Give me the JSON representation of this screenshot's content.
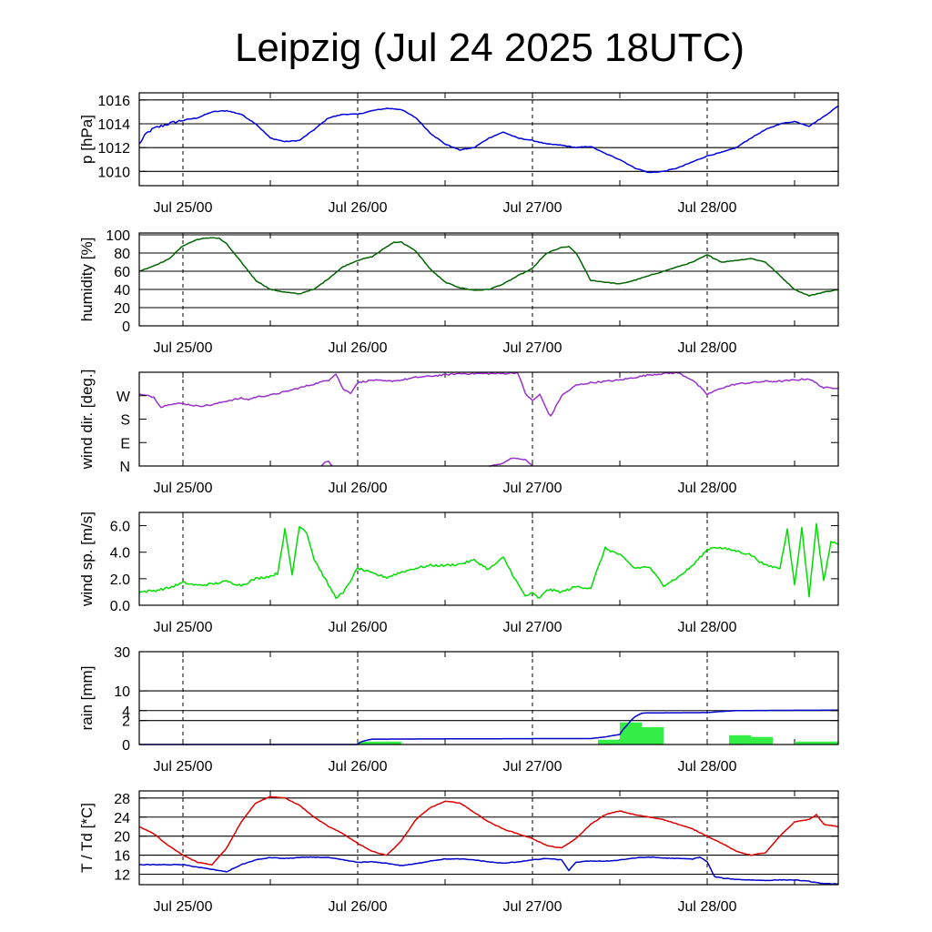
{
  "title": "Leipzig (Jul 24 2025 18UTC)",
  "x_axis": {
    "start_hour": 18,
    "end_hour": 114,
    "minor_step_hours": 12,
    "labels": [
      {
        "text": "Jul 25/00",
        "hour": 24
      },
      {
        "text": "Jul 26/00",
        "hour": 48
      },
      {
        "text": "Jul 27/00",
        "hour": 72
      },
      {
        "text": "Jul 28/00",
        "hour": 96
      }
    ]
  },
  "chart_data": [
    {
      "type": "line",
      "ylabel": "p [hPa]",
      "ylim": [
        1008.8,
        1016.6
      ],
      "ticks": [
        {
          "v": 1010,
          "label": "1010"
        },
        {
          "v": 1012,
          "label": "1012"
        },
        {
          "v": 1014,
          "label": "1014"
        },
        {
          "v": 1016,
          "label": "1016"
        }
      ],
      "gridlines": [
        1010,
        1012,
        1014,
        1016
      ],
      "series": [
        {
          "color": "#0000dd",
          "noise": 0.25,
          "noise_until": 24,
          "x": [
            18,
            19,
            20,
            22,
            24,
            26,
            28,
            30,
            32,
            34,
            36,
            38,
            40,
            42,
            44,
            46,
            48,
            50,
            52,
            54,
            56,
            58,
            60,
            62,
            64,
            66,
            68,
            70,
            72,
            74,
            76,
            78,
            80,
            82,
            84,
            86,
            88,
            90,
            92,
            94,
            96,
            98,
            100,
            102,
            104,
            106,
            108,
            110,
            112,
            114
          ],
          "y": [
            1012.3,
            1013.2,
            1013.6,
            1014.0,
            1014.3,
            1014.5,
            1015.0,
            1015.1,
            1014.8,
            1014.0,
            1012.8,
            1012.5,
            1012.6,
            1013.5,
            1014.5,
            1014.8,
            1014.8,
            1015.1,
            1015.3,
            1015.2,
            1014.5,
            1013.2,
            1012.3,
            1011.8,
            1012.0,
            1012.8,
            1013.3,
            1012.8,
            1012.6,
            1012.3,
            1012.2,
            1012.0,
            1012.1,
            1011.5,
            1011.0,
            1010.3,
            1009.9,
            1010.0,
            1010.3,
            1010.8,
            1011.3,
            1011.6,
            1012.0,
            1012.8,
            1013.5,
            1014.0,
            1014.2,
            1013.8,
            1014.6,
            1015.5
          ]
        }
      ]
    },
    {
      "type": "line",
      "ylabel": "humidity [%]",
      "ylim": [
        0,
        102
      ],
      "ticks": [
        {
          "v": 0,
          "label": "0"
        },
        {
          "v": 20,
          "label": "20"
        },
        {
          "v": 40,
          "label": "40"
        },
        {
          "v": 60,
          "label": "60"
        },
        {
          "v": 80,
          "label": "80"
        },
        {
          "v": 100,
          "label": "100"
        }
      ],
      "gridlines": [
        20,
        40,
        60,
        80,
        100
      ],
      "series": [
        {
          "color": "#006400",
          "noise": 0.8,
          "noise_until": 0,
          "x": [
            18,
            20,
            22,
            24,
            26,
            28,
            29,
            30,
            32,
            34,
            36,
            38,
            40,
            41,
            42,
            44,
            46,
            48,
            50,
            52,
            53,
            54,
            56,
            58,
            60,
            62,
            64,
            66,
            68,
            70,
            72,
            73,
            74,
            76,
            77,
            78,
            80,
            82,
            84,
            86,
            88,
            90,
            92,
            94,
            96,
            98,
            100,
            102,
            104,
            106,
            108,
            110,
            112,
            114
          ],
          "y": [
            60,
            66,
            73,
            88,
            95,
            97,
            96,
            90,
            70,
            50,
            40,
            37,
            35,
            38,
            40,
            52,
            65,
            72,
            76,
            87,
            92,
            92,
            82,
            62,
            48,
            42,
            39,
            40,
            46,
            55,
            63,
            72,
            80,
            86,
            87,
            80,
            50,
            48,
            46,
            50,
            55,
            60,
            65,
            70,
            78,
            70,
            72,
            74,
            70,
            55,
            40,
            33,
            37,
            40
          ]
        }
      ]
    },
    {
      "type": "line",
      "ylabel": "wind dir. [deg.]",
      "ylim": [
        0,
        360
      ],
      "ticks": [
        {
          "v": 0,
          "label": "N"
        },
        {
          "v": 90,
          "label": "E"
        },
        {
          "v": 180,
          "label": "S"
        },
        {
          "v": 270,
          "label": "W"
        }
      ],
      "gridlines": [],
      "series": [
        {
          "color": "#9932cc",
          "noise": 6,
          "noise_until": 0,
          "x": [
            18,
            20,
            21,
            22,
            24,
            26,
            28,
            29,
            30,
            32,
            33,
            34,
            36,
            38,
            40,
            42,
            44,
            45,
            46,
            47,
            48,
            50,
            52,
            54,
            56,
            58,
            60,
            62,
            64,
            66,
            68,
            70,
            71,
            72,
            73,
            74,
            74.5,
            76,
            78,
            80,
            82,
            84,
            86,
            88,
            90,
            92,
            94,
            96,
            98,
            100,
            102,
            104,
            106,
            108,
            110,
            112,
            114
          ],
          "y": [
            275,
            265,
            225,
            238,
            240,
            230,
            235,
            242,
            250,
            260,
            255,
            265,
            272,
            285,
            300,
            315,
            330,
            355,
            295,
            280,
            320,
            330,
            325,
            330,
            340,
            345,
            350,
            355,
            355,
            355,
            355,
            358,
            280,
            250,
            275,
            215,
            190,
            270,
            310,
            320,
            325,
            330,
            340,
            350,
            355,
            358,
            330,
            275,
            300,
            315,
            320,
            325,
            325,
            330,
            335,
            300,
            300
          ]
        },
        {
          "color": "#9932cc",
          "noise": 3,
          "noise_until": 0,
          "x": [
            66,
            67,
            68,
            69,
            70,
            71,
            72
          ],
          "y": [
            0,
            5,
            10,
            30,
            28,
            25,
            0
          ]
        },
        {
          "color": "#9932cc",
          "noise": 2,
          "noise_until": 0,
          "x": [
            43,
            43.5,
            44,
            44.5
          ],
          "y": [
            0,
            15,
            18,
            0
          ]
        }
      ]
    },
    {
      "type": "line",
      "ylabel": "wind sp. [m/s]",
      "ylim": [
        0,
        7.0
      ],
      "ticks": [
        {
          "v": 0,
          "label": "0.0"
        },
        {
          "v": 2,
          "label": "2.0"
        },
        {
          "v": 4,
          "label": "4.0"
        },
        {
          "v": 6,
          "label": "6.0"
        }
      ],
      "gridlines": [],
      "series": [
        {
          "color": "#00dd00",
          "noise": 0.18,
          "noise_until": 0,
          "x": [
            18,
            20,
            22,
            24,
            26,
            28,
            30,
            32,
            34,
            36,
            37,
            38,
            39,
            40,
            41,
            42,
            44,
            45,
            46,
            48,
            50,
            52,
            54,
            56,
            58,
            60,
            62,
            64,
            66,
            68,
            70,
            71,
            72,
            73,
            74,
            76,
            78,
            80,
            82,
            84,
            86,
            88,
            90,
            92,
            94,
            96,
            97,
            98,
            100,
            102,
            104,
            106,
            107,
            108,
            109,
            110,
            111,
            112,
            113,
            114
          ],
          "y": [
            1.0,
            1.1,
            1.3,
            1.7,
            1.5,
            1.6,
            1.8,
            1.5,
            2.0,
            2.2,
            2.4,
            5.7,
            2.3,
            6.0,
            5.5,
            3.5,
            1.5,
            0.6,
            0.9,
            2.8,
            2.4,
            2.1,
            2.5,
            2.8,
            3.0,
            3.0,
            3.1,
            3.4,
            2.7,
            3.6,
            1.6,
            0.7,
            0.9,
            0.5,
            1.2,
            1.0,
            1.4,
            1.3,
            4.3,
            3.8,
            2.8,
            2.9,
            1.5,
            2.1,
            3.0,
            4.2,
            4.4,
            4.3,
            4.1,
            3.8,
            3.0,
            2.8,
            5.8,
            1.5,
            5.8,
            0.7,
            6.1,
            1.8,
            4.8,
            4.6
          ]
        }
      ]
    },
    {
      "type": "bar+line",
      "ylabel": "rain [mm]",
      "scale": "sqrt",
      "ylim": [
        0,
        30
      ],
      "ticks": [
        {
          "v": 0,
          "label": "0"
        },
        {
          "v": 2,
          "label": "2"
        },
        {
          "v": 4,
          "label": "4"
        },
        {
          "v": 10,
          "label": "10"
        },
        {
          "v": 30,
          "label": "30"
        }
      ],
      "gridlines": [
        2,
        4,
        10,
        30
      ],
      "bars": {
        "color": "#33ee44",
        "bins": [
          {
            "x0": 48,
            "x1": 51,
            "v": 0.03
          },
          {
            "x0": 51,
            "x1": 54,
            "v": 0.03
          },
          {
            "x0": 81,
            "x1": 84,
            "v": 0.08
          },
          {
            "x0": 84,
            "x1": 87,
            "v": 1.7
          },
          {
            "x0": 87,
            "x1": 90,
            "v": 1.05
          },
          {
            "x0": 99,
            "x1": 102,
            "v": 0.3
          },
          {
            "x0": 102,
            "x1": 105,
            "v": 0.2
          },
          {
            "x0": 108,
            "x1": 111,
            "v": 0.03
          },
          {
            "x0": 111,
            "x1": 114,
            "v": 0.03
          }
        ]
      },
      "series": [
        {
          "color": "#0000cc",
          "noise": 0,
          "noise_until": 0,
          "x": [
            18,
            48,
            50,
            72,
            80,
            82,
            84,
            85,
            86,
            87,
            88,
            90,
            96,
            98,
            100,
            105,
            114
          ],
          "y": [
            0,
            0,
            0.1,
            0.12,
            0.12,
            0.2,
            0.35,
            1.3,
            2.6,
            3.4,
            3.5,
            3.5,
            3.55,
            3.8,
            4.0,
            4.05,
            4.1
          ]
        }
      ]
    },
    {
      "type": "line",
      "ylabel": "T / Td [*C]",
      "ylim": [
        9.8,
        29.5
      ],
      "ticks": [
        {
          "v": 12,
          "label": "12"
        },
        {
          "v": 16,
          "label": "16"
        },
        {
          "v": 20,
          "label": "20"
        },
        {
          "v": 24,
          "label": "24"
        },
        {
          "v": 28,
          "label": "28"
        }
      ],
      "gridlines": [
        12,
        16,
        20,
        24,
        28
      ],
      "series": [
        {
          "name": "",
          "color": "#dd0000",
          "noise": 0.12,
          "noise_until": 0,
          "x": [
            18,
            20,
            22,
            24,
            26,
            28,
            30,
            32,
            34,
            36,
            38,
            40,
            42,
            44,
            46,
            48,
            50,
            52,
            54,
            56,
            58,
            60,
            62,
            64,
            66,
            68,
            70,
            72,
            74,
            76,
            78,
            80,
            82,
            84,
            86,
            88,
            90,
            92,
            94,
            96,
            98,
            100,
            102,
            104,
            106,
            108,
            110,
            111,
            112,
            114
          ],
          "y": [
            22.0,
            20.5,
            18.0,
            16.0,
            14.5,
            14.0,
            17.5,
            23.0,
            27.0,
            28.3,
            28.0,
            26.5,
            24.0,
            22.0,
            20.5,
            18.5,
            16.8,
            16.0,
            19.0,
            23.5,
            26.0,
            27.3,
            27.0,
            25.0,
            23.0,
            21.5,
            20.5,
            19.5,
            18.0,
            17.5,
            19.5,
            22.5,
            24.5,
            25.3,
            24.5,
            24.0,
            23.5,
            22.5,
            21.5,
            20.0,
            18.5,
            16.8,
            16.0,
            16.5,
            20.0,
            23.0,
            23.5,
            24.5,
            22.5,
            22.0
          ]
        },
        {
          "name": "",
          "color": "#0000cc",
          "noise": 0.12,
          "noise_until": 0,
          "x": [
            18,
            20,
            22,
            24,
            26,
            28,
            30,
            32,
            34,
            36,
            38,
            40,
            42,
            44,
            46,
            48,
            50,
            52,
            54,
            56,
            58,
            60,
            62,
            64,
            66,
            68,
            70,
            72,
            74,
            76,
            77,
            78,
            80,
            82,
            84,
            86,
            88,
            90,
            92,
            94,
            95,
            96,
            97,
            98,
            100,
            102,
            104,
            106,
            108,
            110,
            112,
            114
          ],
          "y": [
            14.0,
            14.0,
            14.0,
            14.0,
            13.5,
            13.0,
            12.5,
            14.0,
            15.0,
            15.5,
            15.3,
            15.5,
            15.6,
            15.5,
            15.0,
            14.5,
            14.6,
            14.3,
            13.8,
            14.2,
            14.8,
            15.2,
            15.2,
            15.0,
            14.6,
            14.3,
            14.6,
            15.0,
            15.3,
            15.0,
            12.8,
            14.5,
            14.8,
            14.7,
            15.0,
            15.4,
            15.6,
            15.4,
            15.3,
            15.2,
            15.6,
            14.6,
            11.5,
            11.2,
            10.9,
            10.8,
            10.7,
            10.8,
            10.8,
            10.5,
            10.0,
            10.0
          ]
        }
      ]
    }
  ]
}
